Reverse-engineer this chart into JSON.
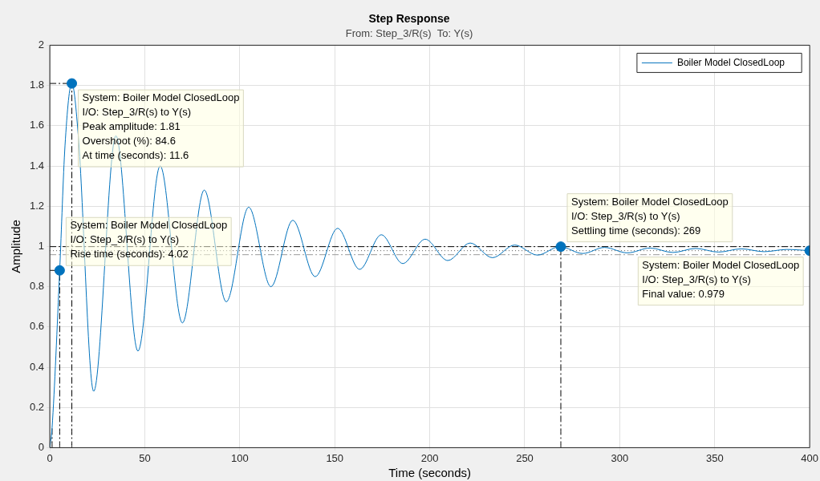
{
  "chart_data": {
    "type": "line",
    "title": "Step Response",
    "subtitle": "From: Step_3/R(s)  To: Y(s)",
    "xlabel": "Time (seconds)",
    "ylabel": "Amplitude",
    "xlim": [
      0,
      400
    ],
    "xticks": [
      0,
      50,
      100,
      150,
      200,
      250,
      300,
      350,
      400
    ],
    "ylim": [
      0,
      2
    ],
    "yticks": [
      0,
      0.2,
      0.4,
      0.6,
      0.8,
      1,
      1.2,
      1.4,
      1.6,
      1.8,
      2
    ],
    "grid": true,
    "legend": "top right",
    "line_style": "solid",
    "marker": "none",
    "series": [
      {
        "name": "Boiler Model ClosedLoop",
        "color": "#0072bd",
        "x": [
          0,
          1.2,
          5.2,
          8,
          11.6,
          15,
          23.1,
          34.8,
          46.4,
          58.1,
          69.8,
          81.3,
          92.9,
          104.7,
          116.4,
          127.9,
          139.7,
          151.5,
          163.1,
          174.5,
          185.8,
          197.6,
          209.5,
          221.3,
          233,
          244.7,
          256.7,
          268.5,
          280.5,
          292,
          304,
          316,
          328,
          340,
          352,
          364,
          376,
          388,
          400
        ],
        "values": [
          0,
          0.1,
          0.881,
          1.5,
          1.81,
          1.55,
          0.28,
          1.55,
          0.48,
          1.4,
          0.62,
          1.28,
          0.725,
          1.195,
          0.8,
          1.13,
          0.85,
          1.09,
          0.886,
          1.058,
          0.915,
          1.036,
          0.93,
          1.017,
          0.944,
          1.007,
          0.957,
          0.999,
          0.965,
          0.995,
          0.968,
          0.992,
          0.97,
          0.99,
          0.972,
          0.988,
          0.974,
          0.985,
          0.979
        ]
      },
      {
        "type": "scatter",
        "color": "#0072bd",
        "marker": "circle",
        "x": [
          5.2,
          11.6,
          269,
          400
        ],
        "values": [
          0.881,
          1.81,
          0.999,
          0.979
        ]
      },
      {
        "color": "#000000",
        "line_style": "dashed",
        "x": [
          1.2,
          1.2
        ],
        "values": [
          0,
          0.1
        ]
      },
      {
        "color": "#000000",
        "line_style": "dashed",
        "x": [
          5.2,
          5.2
        ],
        "values": [
          0,
          0.881
        ]
      },
      {
        "color": "#000000",
        "line_style": "dashed",
        "x": [
          0,
          5.2
        ],
        "values": [
          0.881,
          0.881
        ]
      },
      {
        "color": "#000000",
        "line_style": "dashed",
        "x": [
          11.6,
          11.6
        ],
        "values": [
          0,
          1.81
        ]
      },
      {
        "color": "#000000",
        "line_style": "dashed",
        "x": [
          0,
          11.6
        ],
        "values": [
          1.81,
          1.81
        ]
      },
      {
        "color": "#000000",
        "line_style": "dashed",
        "x": [
          269,
          269
        ],
        "values": [
          0,
          0.999
        ]
      }
    ],
    "ref_lines": [
      {
        "axis": "y",
        "value": 0.999,
        "color": "#000000",
        "line_style": "dashed"
      },
      {
        "axis": "y",
        "value": 0.979,
        "color": "#555555",
        "line_style": "dotted"
      },
      {
        "axis": "y",
        "value": 0.959,
        "color": "#999999",
        "line_style": "dashed"
      }
    ],
    "annotations": [
      {
        "text": "System: Boiler Model ClosedLoop\nI/O: Step_3/R(s) to Y(s)\nPeak amplitude: 1.81\nOvershoot (%): 84.6\nAt time (seconds): 11.6",
        "x": 11.6,
        "y": 1.81
      },
      {
        "text": "System: Boiler Model ClosedLoop\nI/O: Step_3/R(s) to Y(s)\nRise time (seconds): 4.02",
        "x": 5.2,
        "y": 0.881
      },
      {
        "text": "System: Boiler Model ClosedLoop\nI/O: Step_3/R(s) to Y(s)\nSettling time (seconds): 269",
        "x": 269,
        "y": 0.999
      },
      {
        "text": "System: Boiler Model ClosedLoop\nI/O: Step_3/R(s) to Y(s)\nFinal value: 0.979",
        "x": 400,
        "y": 0.979
      }
    ]
  }
}
